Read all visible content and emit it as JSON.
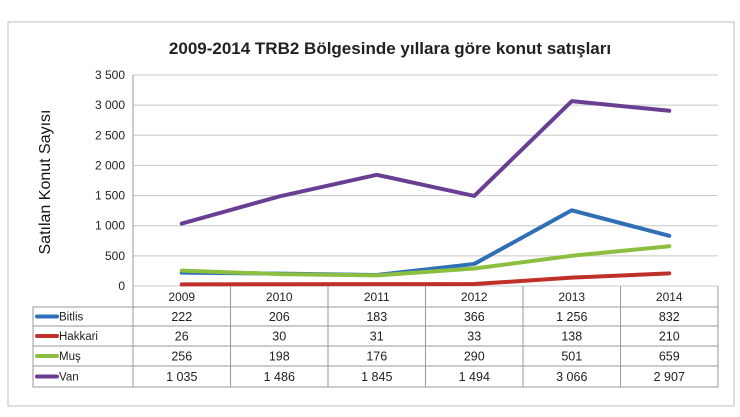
{
  "chart_data": {
    "type": "line",
    "title": "2009-2014 TRB2 Bölgesinde yıllara göre konut satışları",
    "xlabel": "",
    "ylabel": "Satılan Konut Sayısı",
    "ylim": [
      0,
      3500
    ],
    "yticks": [
      0,
      500,
      1000,
      1500,
      2000,
      2500,
      3000,
      3500
    ],
    "ytick_labels": [
      "0",
      "500",
      "1 000",
      "1 500",
      "2 000",
      "2 500",
      "3 000",
      "3 500"
    ],
    "grid": true,
    "legend": "data-table-bottom",
    "categories": [
      "2009",
      "2010",
      "2011",
      "2012",
      "2013",
      "2014"
    ],
    "series": [
      {
        "name": "Bitlis",
        "color": "#2e6fb5",
        "values": [
          222,
          206,
          183,
          366,
          1256,
          832
        ],
        "labels": [
          "222",
          "206",
          "183",
          "366",
          "1 256",
          "832"
        ]
      },
      {
        "name": "Hakkari",
        "color": "#c0302b",
        "values": [
          26,
          30,
          31,
          33,
          138,
          210
        ],
        "labels": [
          "26",
          "30",
          "31",
          "33",
          "138",
          "210"
        ]
      },
      {
        "name": "Muş",
        "color": "#8cbf3f",
        "values": [
          256,
          198,
          176,
          290,
          501,
          659
        ],
        "labels": [
          "256",
          "198",
          "176",
          "290",
          "501",
          "659"
        ]
      },
      {
        "name": "Van",
        "color": "#6a3f93",
        "values": [
          1035,
          1486,
          1845,
          1494,
          3066,
          2907
        ],
        "labels": [
          "1 035",
          "1 486",
          "1 845",
          "1 494",
          "3 066",
          "2 907"
        ]
      }
    ]
  }
}
